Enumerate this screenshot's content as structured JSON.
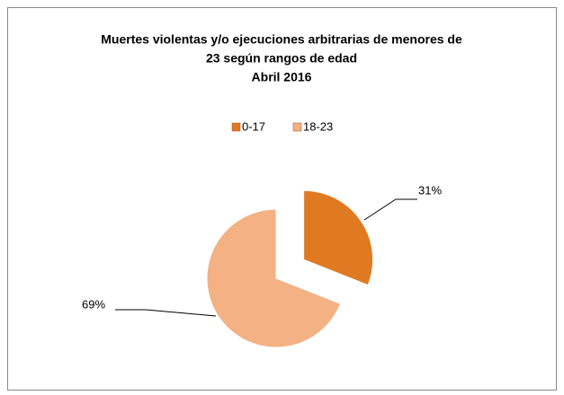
{
  "chart_data": {
    "type": "pie",
    "title": [
      "Muertes violentas y/o ejecuciones arbitrarias de menores de",
      "23 según rangos de edad",
      "Abril 2016"
    ],
    "categories": [
      "0-17",
      "18-23"
    ],
    "values": [
      31,
      69
    ],
    "value_labels": [
      "31%",
      "69%"
    ],
    "colors": [
      "#e07a22",
      "#f4b183"
    ],
    "legend": "top"
  }
}
